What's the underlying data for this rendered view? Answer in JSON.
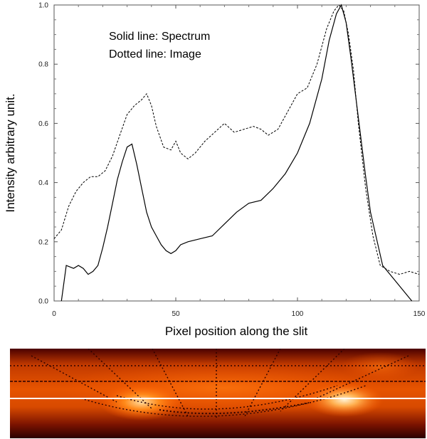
{
  "chart_data": {
    "type": "line",
    "xlabel": "Pixel position along the slit",
    "ylabel": "Intensity arbitrary unit.",
    "xlim": [
      0,
      150
    ],
    "ylim": [
      0,
      1.0
    ],
    "xticks": [
      "0",
      "50",
      "100",
      "150"
    ],
    "yticks": [
      "0.0",
      "0.2",
      "0.4",
      "0.6",
      "0.8",
      "1.0"
    ],
    "grid": false,
    "annotations": [
      "Solid line: Spectrum",
      "Dotted line: Image"
    ],
    "series": [
      {
        "name": "Spectrum",
        "style": "solid",
        "x": [
          3,
          5,
          8,
          10,
          12,
          14,
          16,
          18,
          20,
          22,
          24,
          26,
          28,
          30,
          32,
          34,
          36,
          38,
          40,
          42,
          44,
          46,
          48,
          50,
          52,
          55,
          60,
          65,
          70,
          75,
          80,
          85,
          90,
          95,
          100,
          105,
          110,
          113,
          116,
          118,
          120,
          122,
          125,
          128,
          130,
          135,
          140,
          145,
          147
        ],
        "y": [
          0.0,
          0.12,
          0.11,
          0.12,
          0.11,
          0.09,
          0.1,
          0.12,
          0.18,
          0.25,
          0.33,
          0.41,
          0.47,
          0.52,
          0.53,
          0.46,
          0.38,
          0.3,
          0.25,
          0.22,
          0.19,
          0.17,
          0.16,
          0.17,
          0.19,
          0.2,
          0.21,
          0.22,
          0.26,
          0.3,
          0.33,
          0.34,
          0.38,
          0.43,
          0.5,
          0.6,
          0.75,
          0.88,
          0.97,
          1.0,
          0.94,
          0.82,
          0.62,
          0.42,
          0.3,
          0.12,
          0.07,
          0.02,
          0.0
        ]
      },
      {
        "name": "Image",
        "style": "dotted",
        "x": [
          0,
          3,
          6,
          9,
          12,
          15,
          18,
          21,
          24,
          27,
          30,
          33,
          36,
          38,
          40,
          42,
          45,
          48,
          50,
          52,
          55,
          58,
          62,
          66,
          70,
          74,
          78,
          82,
          85,
          88,
          92,
          96,
          100,
          104,
          108,
          112,
          115,
          117,
          119,
          121,
          123,
          125,
          128,
          131,
          134,
          138,
          142,
          146,
          150
        ],
        "y": [
          0.21,
          0.24,
          0.32,
          0.37,
          0.4,
          0.42,
          0.42,
          0.44,
          0.49,
          0.56,
          0.63,
          0.66,
          0.68,
          0.7,
          0.66,
          0.59,
          0.52,
          0.51,
          0.54,
          0.5,
          0.48,
          0.5,
          0.54,
          0.57,
          0.6,
          0.57,
          0.58,
          0.59,
          0.58,
          0.56,
          0.58,
          0.64,
          0.7,
          0.72,
          0.8,
          0.92,
          0.98,
          1.0,
          0.98,
          0.9,
          0.78,
          0.6,
          0.38,
          0.22,
          0.12,
          0.1,
          0.09,
          0.1,
          0.09
        ]
      }
    ]
  }
}
